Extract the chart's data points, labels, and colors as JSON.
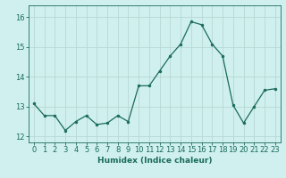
{
  "x": [
    0,
    1,
    2,
    3,
    4,
    5,
    6,
    7,
    8,
    9,
    10,
    11,
    12,
    13,
    14,
    15,
    16,
    17,
    18,
    19,
    20,
    21,
    22,
    23
  ],
  "y": [
    13.1,
    12.7,
    12.7,
    12.2,
    12.5,
    12.7,
    12.4,
    12.45,
    12.7,
    12.5,
    13.7,
    13.7,
    14.2,
    14.7,
    15.1,
    15.85,
    15.75,
    15.1,
    14.7,
    13.05,
    12.45,
    13.0,
    13.55,
    13.6
  ],
  "bg_color": "#cff0ee",
  "grid_color": "#b8d8d4",
  "line_color": "#1a6b5a",
  "marker_color": "#1a6b5a",
  "xlabel": "Humidex (Indice chaleur)",
  "ylim": [
    11.8,
    16.4
  ],
  "xlim": [
    -0.5,
    23.5
  ],
  "yticks": [
    12,
    13,
    14,
    15,
    16
  ],
  "font_color": "#1a6b5a",
  "axis_color": "#1a6b5a",
  "tick_fontsize": 6,
  "xlabel_fontsize": 6.5
}
